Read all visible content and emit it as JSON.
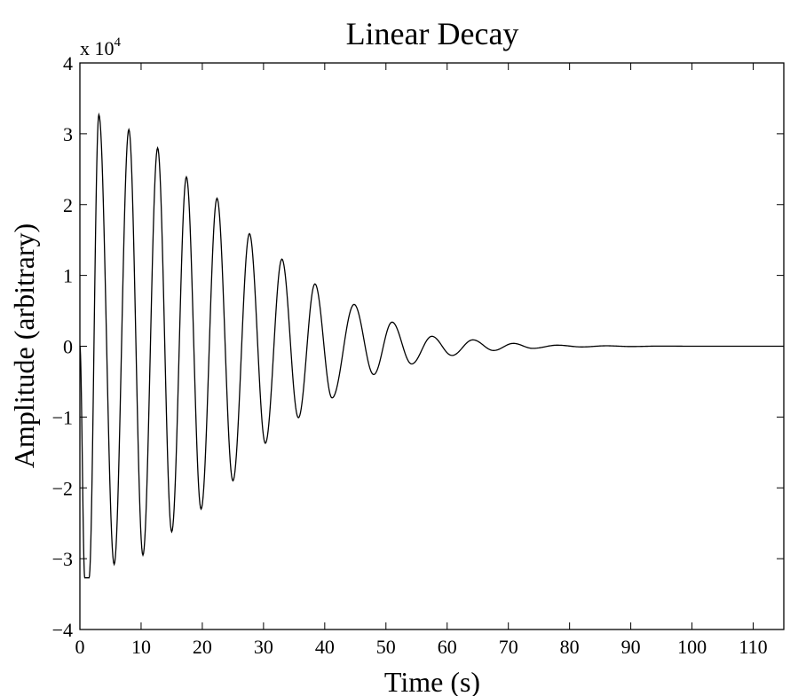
{
  "chart_data": {
    "type": "line",
    "title": "Linear Decay",
    "xlabel": "Time (s)",
    "ylabel": "Amplitude (arbitrary)",
    "xlim": [
      0,
      115
    ],
    "ylim": [
      -40000,
      40000
    ],
    "x_ticks": [
      0,
      10,
      20,
      30,
      40,
      50,
      60,
      70,
      80,
      90,
      100,
      110
    ],
    "x_tick_labels": [
      "0",
      "10",
      "20",
      "30",
      "40",
      "50",
      "60",
      "70",
      "80",
      "90",
      "100",
      "110"
    ],
    "y_ticks": [
      -40000,
      -30000,
      -20000,
      -10000,
      0,
      10000,
      20000,
      30000,
      40000
    ],
    "y_tick_labels": [
      "−4",
      "−3",
      "−2",
      "−1",
      "0",
      "1",
      "2",
      "3",
      "4"
    ],
    "y_exponent_label": "x 10",
    "y_exponent_power": "4",
    "grid": false,
    "series": [
      {
        "color": "#000000",
        "x": [
          0,
          0.8,
          1.5,
          3.1,
          5.6,
          8.0,
          10.3,
          12.7,
          15.0,
          17.4,
          19.8,
          22.4,
          25.0,
          27.7,
          30.3,
          33.0,
          35.7,
          38.4,
          41.2,
          44.8,
          48.0,
          51.0,
          54.2,
          57.5,
          60.8,
          64.2,
          67.6,
          70.8,
          74.0,
          78.0,
          82.0,
          86.0,
          90.0,
          95.0,
          100.0,
          105.0,
          110.0,
          115.0
        ],
        "y": [
          0,
          -32700,
          -32700,
          32700,
          -30800,
          30600,
          -29500,
          28000,
          -26200,
          23900,
          -23000,
          20900,
          -19000,
          15900,
          -13700,
          12300,
          -10100,
          8800,
          -7300,
          5900,
          -4000,
          3400,
          -2500,
          1400,
          -1300,
          900,
          -600,
          400,
          -300,
          150,
          -100,
          60,
          -40,
          20,
          0,
          0,
          0,
          0
        ]
      }
    ]
  }
}
